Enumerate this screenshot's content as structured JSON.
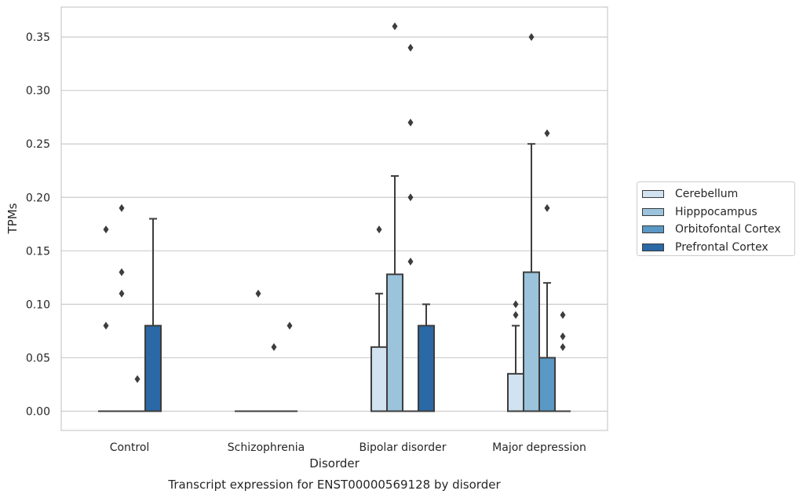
{
  "chart_data": {
    "type": "box",
    "title": "Transcript expression for ENST00000569128 by disorder",
    "xlabel": "Disorder",
    "ylabel": "TPMs",
    "categories": [
      "Control",
      "Schizophrenia",
      "Bipolar disorder",
      "Major depression"
    ],
    "ylim": [
      -0.018,
      0.378
    ],
    "yticks": [
      0.0,
      0.05,
      0.1,
      0.15,
      0.2,
      0.25,
      0.3,
      0.35
    ],
    "ytick_labels": [
      "0.00",
      "0.05",
      "0.10",
      "0.15",
      "0.20",
      "0.25",
      "0.30",
      "0.35"
    ],
    "grid": "horizontal",
    "legend_position": "right",
    "series": [
      {
        "name": "Cerebellum",
        "color": "#d1e2f0",
        "boxes": [
          {
            "q1": 0,
            "median": 0,
            "q3": 0,
            "whislo": 0,
            "whishi": 0,
            "fliers": [
              0.08,
              0.17
            ]
          },
          {
            "q1": 0,
            "median": 0,
            "q3": 0,
            "whislo": 0,
            "whishi": 0,
            "fliers": []
          },
          {
            "q1": 0,
            "median": 0,
            "q3": 0.06,
            "whislo": 0,
            "whishi": 0.11,
            "fliers": [
              0.17
            ]
          },
          {
            "q1": 0,
            "median": 0,
            "q3": 0.035,
            "whislo": 0,
            "whishi": 0.08,
            "fliers": [
              0.09,
              0.1
            ]
          }
        ]
      },
      {
        "name": "Hipppocampus",
        "color": "#9bc3dc",
        "boxes": [
          {
            "q1": 0,
            "median": 0,
            "q3": 0,
            "whislo": 0,
            "whishi": 0,
            "fliers": [
              0.11,
              0.13,
              0.19
            ]
          },
          {
            "q1": 0,
            "median": 0,
            "q3": 0,
            "whislo": 0,
            "whishi": 0,
            "fliers": [
              0.11
            ]
          },
          {
            "q1": 0,
            "median": 0,
            "q3": 0.128,
            "whislo": 0,
            "whishi": 0.22,
            "fliers": [
              0.36
            ]
          },
          {
            "q1": 0,
            "median": 0,
            "q3": 0.13,
            "whislo": 0,
            "whishi": 0.25,
            "fliers": [
              0.35
            ]
          }
        ]
      },
      {
        "name": "Orbitofontal Cortex",
        "color": "#5a98c5",
        "boxes": [
          {
            "q1": 0,
            "median": 0,
            "q3": 0,
            "whislo": 0,
            "whishi": 0,
            "fliers": [
              0.03
            ]
          },
          {
            "q1": 0,
            "median": 0,
            "q3": 0,
            "whislo": 0,
            "whishi": 0,
            "fliers": [
              0.06
            ]
          },
          {
            "q1": 0,
            "median": 0,
            "q3": 0,
            "whislo": 0,
            "whishi": 0,
            "fliers": [
              0.14,
              0.2,
              0.27,
              0.34
            ]
          },
          {
            "q1": 0,
            "median": 0,
            "q3": 0.05,
            "whislo": 0,
            "whishi": 0.12,
            "fliers": [
              0.19,
              0.26
            ]
          }
        ]
      },
      {
        "name": "Prefrontal Cortex",
        "color": "#2a68a6",
        "boxes": [
          {
            "q1": 0,
            "median": 0,
            "q3": 0.08,
            "whislo": 0,
            "whishi": 0.18,
            "fliers": []
          },
          {
            "q1": 0,
            "median": 0,
            "q3": 0,
            "whislo": 0,
            "whishi": 0,
            "fliers": [
              0.08
            ]
          },
          {
            "q1": 0,
            "median": 0,
            "q3": 0.08,
            "whislo": 0,
            "whishi": 0.1,
            "fliers": []
          },
          {
            "q1": 0,
            "median": 0,
            "q3": 0,
            "whislo": 0,
            "whishi": 0,
            "fliers": [
              0.06,
              0.07,
              0.09
            ]
          }
        ]
      }
    ]
  }
}
